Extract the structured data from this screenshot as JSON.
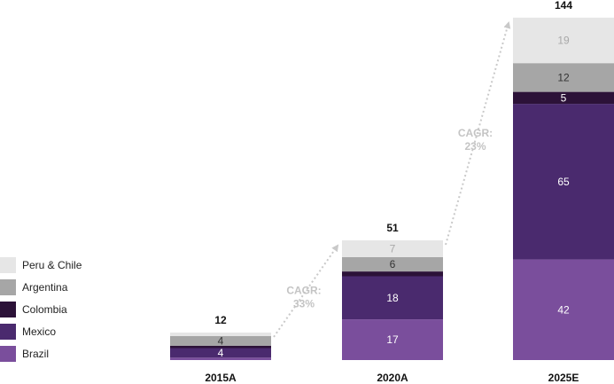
{
  "chart_data": {
    "type": "bar",
    "stacked": true,
    "categories": [
      "2015A",
      "2020A",
      "2025E"
    ],
    "totals": [
      12,
      51,
      144
    ],
    "series": [
      {
        "name": "Brazil",
        "color": "#7a4e9c",
        "values": [
          1,
          17,
          42
        ],
        "labels": [
          "",
          "17",
          "42"
        ]
      },
      {
        "name": "Mexico",
        "color": "#4a2a6e",
        "values": [
          4,
          18,
          65
        ],
        "labels": [
          "4",
          "18",
          "65"
        ]
      },
      {
        "name": "Colombia",
        "color": "#2c1238",
        "values": [
          1,
          2,
          5
        ],
        "labels": [
          "",
          "",
          "5"
        ]
      },
      {
        "name": "Argentina",
        "color": "#a6a6a6",
        "values": [
          4,
          6,
          12
        ],
        "labels": [
          "4",
          "6",
          "12"
        ]
      },
      {
        "name": "Peru & Chile",
        "color": "#e6e6e6",
        "values": [
          1.5,
          7,
          19
        ],
        "labels": [
          "",
          "7",
          "19"
        ]
      }
    ],
    "legend_position": "left",
    "grid": false,
    "annotations": [
      {
        "text_line1": "CAGR:",
        "text_line2": "33%",
        "from": "2015A",
        "to": "2020A"
      },
      {
        "text_line1": "CAGR:",
        "text_line2": "23%",
        "from": "2020A",
        "to": "2025E"
      }
    ]
  }
}
